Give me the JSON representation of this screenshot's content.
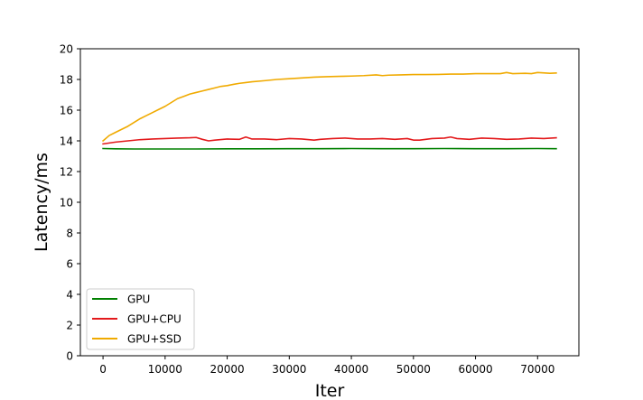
{
  "chart_data": {
    "type": "line",
    "title": "",
    "xlabel": "Iter",
    "ylabel": "Latency/ms",
    "xlim": [
      -3650,
      76650
    ],
    "ylim": [
      0,
      20
    ],
    "xticks": [
      0,
      10000,
      20000,
      30000,
      40000,
      50000,
      60000,
      70000
    ],
    "xtick_labels": [
      "0",
      "10000",
      "20000",
      "30000",
      "40000",
      "50000",
      "60000",
      "70000"
    ],
    "yticks": [
      0,
      2,
      4,
      6,
      8,
      10,
      12,
      14,
      16,
      18,
      20
    ],
    "ytick_labels": [
      "0",
      "2",
      "4",
      "6",
      "8",
      "10",
      "12",
      "14",
      "16",
      "18",
      "20"
    ],
    "grid": false,
    "legend_position": "lower-left",
    "series": [
      {
        "name": "GPU",
        "color": "#008000",
        "x": [
          0,
          2000,
          5000,
          10000,
          15000,
          20000,
          25000,
          30000,
          35000,
          40000,
          45000,
          50000,
          55000,
          60000,
          65000,
          70000,
          73000
        ],
        "y": [
          13.5,
          13.48,
          13.47,
          13.47,
          13.47,
          13.48,
          13.48,
          13.49,
          13.49,
          13.5,
          13.49,
          13.49,
          13.5,
          13.49,
          13.49,
          13.5,
          13.49
        ]
      },
      {
        "name": "GPU+CPU",
        "color": "#e31a1c",
        "x": [
          0,
          2000,
          4000,
          6000,
          8000,
          10000,
          12000,
          14000,
          15000,
          16000,
          17000,
          18000,
          20000,
          22000,
          23000,
          24000,
          26000,
          28000,
          30000,
          32000,
          34000,
          35000,
          37000,
          39000,
          41000,
          43000,
          45000,
          47000,
          49000,
          50000,
          51000,
          53000,
          55000,
          56000,
          57000,
          59000,
          61000,
          63000,
          65000,
          67000,
          69000,
          71000,
          73000
        ],
        "y": [
          13.8,
          13.92,
          14.0,
          14.08,
          14.12,
          14.15,
          14.18,
          14.2,
          14.22,
          14.1,
          14.0,
          14.05,
          14.12,
          14.1,
          14.25,
          14.12,
          14.12,
          14.08,
          14.15,
          14.12,
          14.05,
          14.1,
          14.15,
          14.18,
          14.12,
          14.12,
          14.15,
          14.1,
          14.15,
          14.05,
          14.05,
          14.15,
          14.18,
          14.25,
          14.15,
          14.1,
          14.18,
          14.15,
          14.1,
          14.12,
          14.18,
          14.15,
          14.2
        ]
      },
      {
        "name": "GPU+SSD",
        "color": "#f0aa00",
        "x": [
          0,
          1000,
          2000,
          3000,
          4000,
          5000,
          6000,
          7000,
          8000,
          9000,
          10000,
          11000,
          12000,
          13000,
          14000,
          15000,
          16000,
          17000,
          18000,
          19000,
          20000,
          21000,
          22000,
          23000,
          24000,
          26000,
          28000,
          30000,
          32000,
          34000,
          36000,
          38000,
          40000,
          42000,
          44000,
          45000,
          46000,
          48000,
          50000,
          52000,
          54000,
          56000,
          58000,
          60000,
          62000,
          64000,
          65000,
          66000,
          68000,
          69000,
          70000,
          72000,
          73000
        ],
        "y": [
          14.0,
          14.35,
          14.55,
          14.75,
          14.95,
          15.2,
          15.45,
          15.65,
          15.85,
          16.05,
          16.25,
          16.5,
          16.75,
          16.9,
          17.05,
          17.15,
          17.25,
          17.35,
          17.45,
          17.55,
          17.6,
          17.68,
          17.75,
          17.8,
          17.85,
          17.92,
          18.0,
          18.05,
          18.1,
          18.15,
          18.18,
          18.2,
          18.22,
          18.25,
          18.3,
          18.25,
          18.28,
          18.3,
          18.32,
          18.32,
          18.33,
          18.35,
          18.35,
          18.38,
          18.38,
          18.38,
          18.45,
          18.38,
          18.4,
          18.38,
          18.45,
          18.4,
          18.42
        ]
      }
    ]
  }
}
